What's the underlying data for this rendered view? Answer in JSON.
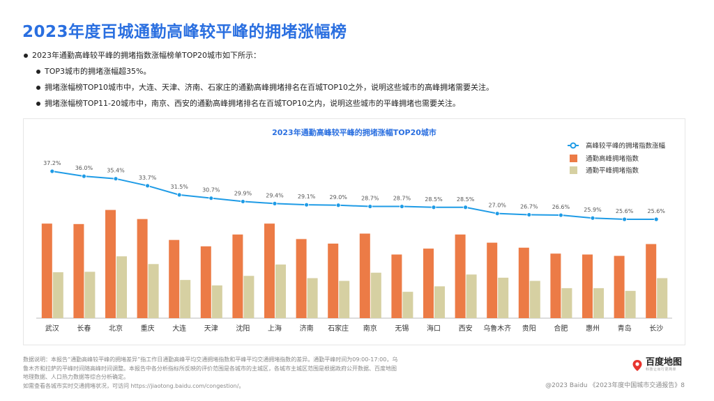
{
  "page": {
    "title": "2023年度百城通勤高峰较平峰的拥堵涨幅榜",
    "bullets": [
      {
        "text": "2023年通勤高峰较平峰的拥堵指数涨幅榜单TOP20城市如下所示：",
        "level": 1
      },
      {
        "text": "TOP3城市的拥堵涨幅超35%。",
        "level": 2
      },
      {
        "text": "拥堵涨幅榜TOP10城市中，大连、天津、济南、石家庄的通勤高峰拥堵排名在百城TOP10之外，说明这些城市的高峰拥堵需要关注。",
        "level": 2
      },
      {
        "text": "拥堵涨幅榜TOP11-20城市中，南京、西安的通勤高峰拥堵排名在百城TOP10之内，说明这些城市的平峰拥堵也需要关注。",
        "level": 2
      }
    ],
    "footnote": {
      "line1": "数据说明：本报告“通勤高峰较平峰的拥堵差异”指工作日通勤高峰平均交通拥堵指数和平峰平均交通拥堵指数的差异。通勤平峰时间为09:00-17:00，乌",
      "line2": "鲁木齐和拉萨的平峰时间随高峰时间调整。本报告中各分析指标所反映的评价范围是各城市的主城区，各城市主城区范围是根据政府公开数据、百度地图",
      "line3": "地理数据、人口热力数据等综合分析确定。",
      "line4": "如需查看各城市实时交通拥堵状况，可访问 https://jiaotong.baidu.com/congestion/。"
    },
    "logo": {
      "text": "百度地图",
      "sub": "科技让出行更简单"
    },
    "copyright": "@2023 Baidu 《2023年度中国城市交通报告》8"
  },
  "colors": {
    "title": "#2a6fe0",
    "line": "#1e9be6",
    "peak_bar": "#ec7b46",
    "offpeak_bar": "#d6d0a2",
    "logo_pin": "#e8352e"
  },
  "chart_data": {
    "type": "bar",
    "title": "2023年通勤高峰较平峰的拥堵涨幅TOP20城市",
    "categories": [
      "武汉",
      "长春",
      "北京",
      "重庆",
      "大连",
      "天津",
      "沈阳",
      "上海",
      "济南",
      "石家庄",
      "南京",
      "无锡",
      "海口",
      "西安",
      "乌鲁木齐",
      "贵阳",
      "合肥",
      "惠州",
      "青岛",
      "长沙"
    ],
    "series": [
      {
        "name": "高峰较平峰的拥堵指数涨幅",
        "kind": "line",
        "labels": [
          "37.2%",
          "36.0%",
          "35.4%",
          "33.7%",
          "31.5%",
          "30.7%",
          "29.9%",
          "29.4%",
          "29.1%",
          "29.0%",
          "28.7%",
          "28.7%",
          "28.5%",
          "28.5%",
          "27.0%",
          "26.7%",
          "26.6%",
          "25.9%",
          "25.6%",
          "25.6%"
        ],
        "values": [
          37.2,
          36.0,
          35.4,
          33.7,
          31.5,
          30.7,
          29.9,
          29.4,
          29.1,
          29.0,
          28.7,
          28.7,
          28.5,
          28.5,
          27.0,
          26.7,
          26.6,
          25.9,
          25.6,
          25.6
        ]
      },
      {
        "name": "通勤高峰拥堵指数",
        "kind": "bar",
        "values": [
          2.08,
          2.07,
          2.38,
          2.18,
          1.72,
          1.58,
          1.84,
          2.08,
          1.74,
          1.64,
          1.86,
          1.4,
          1.53,
          1.84,
          1.66,
          1.55,
          1.42,
          1.4,
          1.37,
          1.63
        ]
      },
      {
        "name": "通勤平峰拥堵指数",
        "kind": "bar",
        "values": [
          1.01,
          1.02,
          1.36,
          1.19,
          0.84,
          0.72,
          0.93,
          1.18,
          0.88,
          0.82,
          1.0,
          0.58,
          0.7,
          0.96,
          0.89,
          0.82,
          0.66,
          0.66,
          0.6,
          0.88
        ]
      }
    ],
    "legend_position": "top-right",
    "grid": false,
    "y_axis_visible": false
  }
}
